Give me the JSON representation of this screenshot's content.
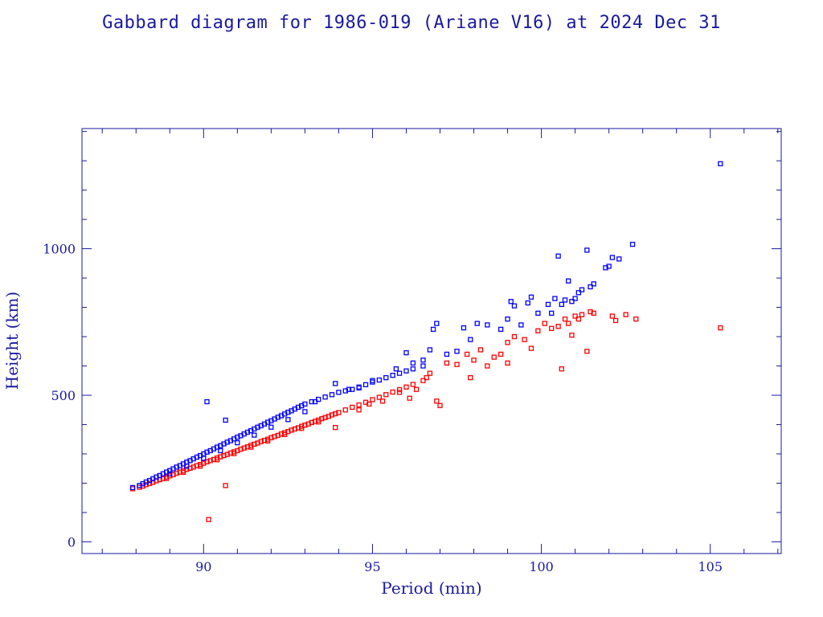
{
  "colors": {
    "axis": "#1a1a9e",
    "apogee": "#0000ff",
    "perigee": "#ff0000",
    "background": "#ffffff"
  },
  "chart_data": {
    "type": "scatter",
    "title": "Gabbard diagram for 1986-019 (Ariane V16) at 2024 Dec 31",
    "xlabel": "Period (min)",
    "ylabel": "Height (km)",
    "xlim": [
      86.4,
      107.1
    ],
    "ylim": [
      -40,
      1410
    ],
    "xticks": [
      90,
      95,
      100,
      105
    ],
    "xtick_labels": [
      "90",
      "95",
      "100",
      "105"
    ],
    "yticks": [
      0,
      500,
      1000
    ],
    "ytick_labels": [
      "0",
      "500",
      "1000"
    ],
    "grid": false,
    "legend": "none",
    "series": [
      {
        "values": [
          [
            87.9,
            181
          ],
          [
            88.1,
            186
          ],
          [
            88.2,
            190
          ],
          [
            88.3,
            195
          ],
          [
            88.4,
            199
          ],
          [
            88.5,
            203
          ],
          [
            88.6,
            208
          ],
          [
            88.7,
            212
          ],
          [
            88.8,
            216
          ],
          [
            88.9,
            221
          ],
          [
            89.0,
            225
          ],
          [
            89.1,
            229
          ],
          [
            89.2,
            234
          ],
          [
            89.3,
            238
          ],
          [
            89.4,
            242
          ],
          [
            89.5,
            247
          ],
          [
            89.6,
            251
          ],
          [
            89.7,
            255
          ],
          [
            89.8,
            260
          ],
          [
            89.9,
            264
          ],
          [
            90.0,
            268
          ],
          [
            90.1,
            273
          ],
          [
            90.2,
            277
          ],
          [
            90.3,
            281
          ],
          [
            90.4,
            286
          ],
          [
            90.5,
            290
          ],
          [
            90.6,
            294
          ],
          [
            90.7,
            298
          ],
          [
            90.8,
            303
          ],
          [
            90.9,
            307
          ],
          [
            91.0,
            311
          ],
          [
            91.1,
            316
          ],
          [
            91.2,
            320
          ],
          [
            91.3,
            324
          ],
          [
            91.4,
            329
          ],
          [
            91.5,
            333
          ],
          [
            91.6,
            337
          ],
          [
            91.7,
            342
          ],
          [
            91.8,
            346
          ],
          [
            91.9,
            350
          ],
          [
            92.0,
            355
          ],
          [
            92.1,
            359
          ],
          [
            92.2,
            363
          ],
          [
            92.3,
            368
          ],
          [
            92.4,
            372
          ],
          [
            92.5,
            376
          ],
          [
            92.6,
            381
          ],
          [
            92.7,
            385
          ],
          [
            92.8,
            389
          ],
          [
            92.9,
            394
          ],
          [
            93.0,
            398
          ],
          [
            93.1,
            402
          ],
          [
            93.2,
            407
          ],
          [
            93.3,
            411
          ],
          [
            93.4,
            415
          ],
          [
            93.5,
            420
          ],
          [
            93.6,
            424
          ],
          [
            93.7,
            428
          ],
          [
            93.8,
            433
          ],
          [
            93.9,
            437
          ],
          [
            94.0,
            441
          ],
          [
            94.2,
            450
          ],
          [
            94.4,
            459
          ],
          [
            94.6,
            467
          ],
          [
            94.8,
            476
          ],
          [
            95.0,
            485
          ],
          [
            95.2,
            493
          ],
          [
            95.4,
            502
          ],
          [
            95.6,
            511
          ],
          [
            95.8,
            519
          ],
          [
            96.0,
            528
          ],
          [
            96.2,
            537
          ],
          [
            96.5,
            550
          ],
          [
            88.9,
            216
          ],
          [
            89.4,
            237
          ],
          [
            89.9,
            258
          ],
          [
            90.4,
            280
          ],
          [
            90.9,
            301
          ],
          [
            91.4,
            323
          ],
          [
            91.9,
            344
          ],
          [
            92.4,
            366
          ],
          [
            92.9,
            387
          ],
          [
            93.4,
            409
          ],
          [
            90.15,
            76
          ],
          [
            90.65,
            192
          ],
          [
            93.9,
            390
          ],
          [
            94.6,
            450
          ],
          [
            94.9,
            470
          ],
          [
            95.3,
            480
          ],
          [
            95.8,
            510
          ],
          [
            96.1,
            490
          ],
          [
            96.3,
            520
          ],
          [
            96.6,
            560
          ],
          [
            96.7,
            575
          ],
          [
            96.9,
            480
          ],
          [
            97.0,
            465
          ],
          [
            97.2,
            610
          ],
          [
            97.5,
            605
          ],
          [
            97.8,
            640
          ],
          [
            97.9,
            560
          ],
          [
            98.0,
            620
          ],
          [
            98.2,
            655
          ],
          [
            98.4,
            600
          ],
          [
            98.6,
            630
          ],
          [
            98.8,
            640
          ],
          [
            99.0,
            680
          ],
          [
            99.0,
            610
          ],
          [
            99.2,
            700
          ],
          [
            99.5,
            690
          ],
          [
            99.7,
            660
          ],
          [
            99.9,
            720
          ],
          [
            100.1,
            745
          ],
          [
            100.3,
            728
          ],
          [
            100.5,
            735
          ],
          [
            100.6,
            590
          ],
          [
            100.7,
            760
          ],
          [
            100.8,
            745
          ],
          [
            100.9,
            705
          ],
          [
            101.0,
            770
          ],
          [
            101.1,
            760
          ],
          [
            101.2,
            775
          ],
          [
            101.35,
            650
          ],
          [
            101.45,
            785
          ],
          [
            101.55,
            780
          ],
          [
            102.1,
            770
          ],
          [
            102.2,
            755
          ],
          [
            102.5,
            775
          ],
          [
            102.8,
            760
          ],
          [
            105.3,
            730
          ]
        ]
      },
      {
        "values": [
          [
            87.9,
            185
          ],
          [
            88.1,
            192
          ],
          [
            88.2,
            198
          ],
          [
            88.3,
            204
          ],
          [
            88.4,
            209
          ],
          [
            88.5,
            215
          ],
          [
            88.6,
            221
          ],
          [
            88.7,
            226
          ],
          [
            88.8,
            232
          ],
          [
            88.9,
            238
          ],
          [
            89.0,
            243
          ],
          [
            89.1,
            249
          ],
          [
            89.2,
            255
          ],
          [
            89.3,
            260
          ],
          [
            89.4,
            266
          ],
          [
            89.5,
            272
          ],
          [
            89.6,
            277
          ],
          [
            89.7,
            283
          ],
          [
            89.8,
            289
          ],
          [
            89.9,
            294
          ],
          [
            90.0,
            300
          ],
          [
            90.1,
            306
          ],
          [
            90.2,
            311
          ],
          [
            90.3,
            317
          ],
          [
            90.4,
            323
          ],
          [
            90.5,
            328
          ],
          [
            90.6,
            334
          ],
          [
            90.7,
            340
          ],
          [
            90.8,
            345
          ],
          [
            90.9,
            351
          ],
          [
            91.0,
            357
          ],
          [
            91.1,
            362
          ],
          [
            91.2,
            368
          ],
          [
            91.3,
            374
          ],
          [
            91.4,
            379
          ],
          [
            91.5,
            385
          ],
          [
            91.6,
            391
          ],
          [
            91.7,
            396
          ],
          [
            91.8,
            402
          ],
          [
            91.9,
            408
          ],
          [
            92.0,
            413
          ],
          [
            92.1,
            419
          ],
          [
            92.2,
            425
          ],
          [
            92.3,
            430
          ],
          [
            92.4,
            436
          ],
          [
            92.5,
            442
          ],
          [
            92.6,
            447
          ],
          [
            92.7,
            453
          ],
          [
            92.8,
            459
          ],
          [
            92.9,
            464
          ],
          [
            93.0,
            470
          ],
          [
            93.2,
            478
          ],
          [
            93.4,
            486
          ],
          [
            93.6,
            494
          ],
          [
            93.8,
            502
          ],
          [
            94.0,
            510
          ],
          [
            94.2,
            515
          ],
          [
            94.4,
            520
          ],
          [
            94.6,
            528
          ],
          [
            94.8,
            536
          ],
          [
            95.0,
            545
          ],
          [
            95.2,
            552
          ],
          [
            95.4,
            560
          ],
          [
            95.6,
            568
          ],
          [
            95.8,
            575
          ],
          [
            96.0,
            583
          ],
          [
            96.2,
            590
          ],
          [
            96.5,
            600
          ],
          [
            89.0,
            232
          ],
          [
            89.5,
            258
          ],
          [
            90.0,
            285
          ],
          [
            90.5,
            311
          ],
          [
            91.0,
            338
          ],
          [
            91.5,
            364
          ],
          [
            92.0,
            391
          ],
          [
            92.5,
            417
          ],
          [
            93.0,
            444
          ],
          [
            90.1,
            478
          ],
          [
            90.65,
            415
          ],
          [
            93.3,
            478
          ],
          [
            93.9,
            540
          ],
          [
            94.3,
            520
          ],
          [
            94.6,
            525
          ],
          [
            95.0,
            550
          ],
          [
            95.7,
            590
          ],
          [
            96.0,
            645
          ],
          [
            96.2,
            610
          ],
          [
            96.5,
            620
          ],
          [
            96.7,
            655
          ],
          [
            96.9,
            745
          ],
          [
            96.8,
            725
          ],
          [
            97.2,
            640
          ],
          [
            97.5,
            650
          ],
          [
            97.7,
            730
          ],
          [
            97.9,
            690
          ],
          [
            98.1,
            745
          ],
          [
            98.4,
            740
          ],
          [
            98.8,
            725
          ],
          [
            99.0,
            760
          ],
          [
            99.1,
            820
          ],
          [
            99.2,
            805
          ],
          [
            99.4,
            740
          ],
          [
            99.6,
            815
          ],
          [
            99.7,
            835
          ],
          [
            99.9,
            780
          ],
          [
            100.2,
            810
          ],
          [
            100.3,
            780
          ],
          [
            100.4,
            830
          ],
          [
            100.5,
            975
          ],
          [
            100.6,
            810
          ],
          [
            100.7,
            825
          ],
          [
            100.8,
            890
          ],
          [
            100.9,
            820
          ],
          [
            101.0,
            830
          ],
          [
            101.1,
            850
          ],
          [
            101.2,
            860
          ],
          [
            101.35,
            995
          ],
          [
            101.45,
            870
          ],
          [
            101.55,
            880
          ],
          [
            101.9,
            935
          ],
          [
            102.0,
            940
          ],
          [
            102.1,
            970
          ],
          [
            102.3,
            965
          ],
          [
            102.7,
            1015
          ],
          [
            105.3,
            1290
          ]
        ]
      }
    ]
  }
}
